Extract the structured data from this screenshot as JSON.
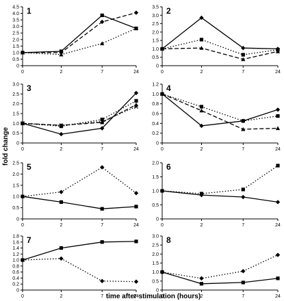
{
  "figure": {
    "xlabel": "time after stimulation (hours)",
    "ylabel": "fold change"
  },
  "chart_data": [
    {
      "type": "line",
      "panel_label": "1",
      "x": [
        0,
        2,
        7,
        24
      ],
      "ylim": [
        0,
        4.5
      ],
      "yticks": [
        "0",
        "0.5",
        "1.0",
        "1.5",
        "2.0",
        "2.5",
        "3.0",
        "3.5",
        "4.0",
        "4.5"
      ],
      "xticks": [
        "0",
        "2",
        "7",
        "24"
      ],
      "series": [
        {
          "values": [
            1.0,
            1.1,
            3.85,
            2.85
          ],
          "marker": "square",
          "style": "solid"
        },
        {
          "values": [
            1.0,
            1.0,
            3.35,
            4.05
          ],
          "marker": "diamond",
          "style": "dashed"
        },
        {
          "values": [
            1.0,
            0.85,
            1.7,
            2.85
          ],
          "marker": "triangle",
          "style": "dotted"
        }
      ]
    },
    {
      "type": "line",
      "panel_label": "2",
      "x": [
        0,
        2,
        7,
        24
      ],
      "ylim": [
        0,
        3.5
      ],
      "yticks": [
        "0",
        "0.5",
        "1.0",
        "1.5",
        "2.0",
        "2.5",
        "3.0",
        "3.5"
      ],
      "xticks": [
        "0",
        "2",
        "7",
        "24"
      ],
      "series": [
        {
          "values": [
            1.0,
            2.85,
            1.05,
            1.0
          ],
          "marker": "diamond",
          "style": "solid"
        },
        {
          "values": [
            1.0,
            1.55,
            0.65,
            0.95
          ],
          "marker": "square",
          "style": "dotted"
        },
        {
          "values": [
            1.0,
            1.05,
            0.38,
            0.85
          ],
          "marker": "triangle",
          "style": "dashed"
        }
      ]
    },
    {
      "type": "line",
      "panel_label": "3",
      "x": [
        0,
        2,
        7,
        24
      ],
      "ylim": [
        0,
        3.0
      ],
      "yticks": [
        "0",
        "0.5",
        "1.0",
        "1.5",
        "2.0",
        "2.5",
        "3.0"
      ],
      "xticks": [
        "0",
        "2",
        "7",
        "24"
      ],
      "series": [
        {
          "values": [
            1.0,
            0.45,
            0.75,
            2.55
          ],
          "marker": "diamond",
          "style": "solid"
        },
        {
          "values": [
            1.0,
            0.85,
            1.2,
            2.15
          ],
          "marker": "square",
          "style": "dotted"
        },
        {
          "values": [
            1.0,
            0.9,
            1.05,
            1.95
          ],
          "marker": "triangle",
          "style": "dashed"
        },
        {
          "values": [
            1.0,
            0.9,
            1.1,
            1.85
          ],
          "marker": "x",
          "style": "dotted"
        }
      ]
    },
    {
      "type": "line",
      "panel_label": "4",
      "x": [
        0,
        2,
        7,
        24
      ],
      "ylim": [
        0,
        1.2
      ],
      "yticks": [
        "0",
        "0.2",
        "0.4",
        "0.6",
        "0.8",
        "1.0",
        "1.2"
      ],
      "xticks": [
        "0",
        "2",
        "7",
        "24"
      ],
      "series": [
        {
          "values": [
            1.0,
            0.35,
            0.45,
            0.68
          ],
          "marker": "diamond",
          "style": "solid"
        },
        {
          "values": [
            1.0,
            0.74,
            0.45,
            0.55
          ],
          "marker": "square",
          "style": "dotted"
        },
        {
          "values": [
            1.0,
            0.66,
            0.28,
            0.3
          ],
          "marker": "triangle",
          "style": "dashed"
        }
      ]
    },
    {
      "type": "line",
      "panel_label": "5",
      "x": [
        0,
        2,
        7,
        24
      ],
      "ylim": [
        0,
        2.5
      ],
      "yticks": [
        "0",
        "0.5",
        "1.0",
        "1.5",
        "2.0",
        "2.5"
      ],
      "xticks": [
        "0",
        "2",
        "7",
        "24"
      ],
      "series": [
        {
          "values": [
            1.0,
            1.2,
            2.3,
            1.15
          ],
          "marker": "diamond",
          "style": "dotted"
        },
        {
          "values": [
            1.0,
            0.75,
            0.45,
            0.55
          ],
          "marker": "square",
          "style": "solid"
        }
      ]
    },
    {
      "type": "line",
      "panel_label": "6",
      "x": [
        0,
        2,
        7,
        24
      ],
      "ylim": [
        0,
        2.0
      ],
      "yticks": [
        "0",
        "0.5",
        "1.0",
        "1.5",
        "2.0"
      ],
      "xticks": [
        "0",
        "2",
        "7",
        "24"
      ],
      "series": [
        {
          "values": [
            1.0,
            0.9,
            1.05,
            1.9
          ],
          "marker": "square",
          "style": "dotted"
        },
        {
          "values": [
            1.0,
            0.85,
            0.78,
            0.6
          ],
          "marker": "diamond",
          "style": "solid"
        }
      ]
    },
    {
      "type": "line",
      "panel_label": "7",
      "x": [
        0,
        2,
        7,
        24
      ],
      "ylim": [
        0,
        1.8
      ],
      "yticks": [
        "0",
        "0.2",
        "0.4",
        "0.6",
        "0.8",
        "1.0",
        "1.2",
        "1.4",
        "1.6",
        "1.8"
      ],
      "xticks": [
        "0",
        "2",
        "7",
        "24"
      ],
      "series": [
        {
          "values": [
            1.0,
            1.4,
            1.6,
            1.62
          ],
          "marker": "square",
          "style": "solid"
        },
        {
          "values": [
            1.0,
            1.05,
            0.3,
            0.28
          ],
          "marker": "diamond",
          "style": "dotted"
        }
      ]
    },
    {
      "type": "line",
      "panel_label": "8",
      "x": [
        0,
        2,
        7,
        24
      ],
      "ylim": [
        0,
        3.0
      ],
      "yticks": [
        "0",
        "0.5",
        "1.0",
        "1.5",
        "2.0",
        "2.5",
        "3.0"
      ],
      "xticks": [
        "0",
        "2",
        "7",
        "24"
      ],
      "series": [
        {
          "values": [
            1.0,
            0.65,
            1.05,
            1.95
          ],
          "marker": "diamond",
          "style": "dotted"
        },
        {
          "values": [
            1.0,
            0.35,
            0.42,
            0.65
          ],
          "marker": "square",
          "style": "solid"
        }
      ]
    }
  ]
}
